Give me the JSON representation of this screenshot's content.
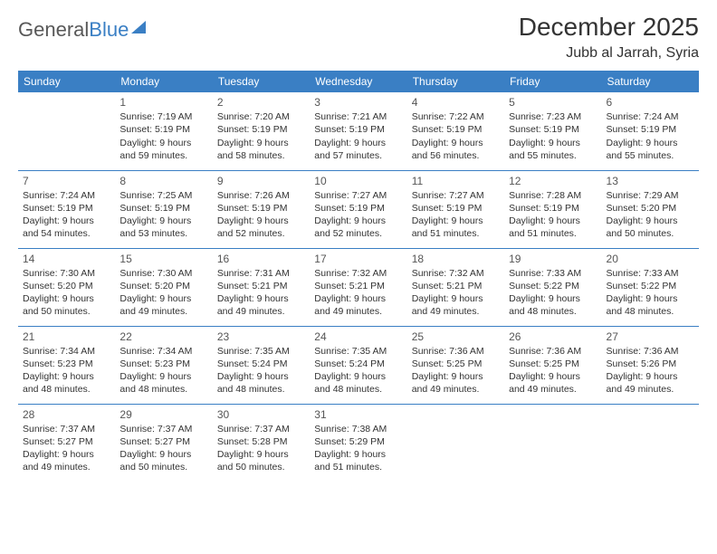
{
  "logo": {
    "text_gray": "General",
    "text_blue": "Blue"
  },
  "title": "December 2025",
  "location": "Jubb al Jarrah, Syria",
  "header_color": "#3a7fc4",
  "border_color": "#3a7fc4",
  "text_color": "#333333",
  "daynum_color": "#555555",
  "background_color": "#ffffff",
  "day_headers": [
    "Sunday",
    "Monday",
    "Tuesday",
    "Wednesday",
    "Thursday",
    "Friday",
    "Saturday"
  ],
  "weeks": [
    [
      null,
      {
        "n": "1",
        "sr": "7:19 AM",
        "ss": "5:19 PM",
        "dl": "9 hours and 59 minutes."
      },
      {
        "n": "2",
        "sr": "7:20 AM",
        "ss": "5:19 PM",
        "dl": "9 hours and 58 minutes."
      },
      {
        "n": "3",
        "sr": "7:21 AM",
        "ss": "5:19 PM",
        "dl": "9 hours and 57 minutes."
      },
      {
        "n": "4",
        "sr": "7:22 AM",
        "ss": "5:19 PM",
        "dl": "9 hours and 56 minutes."
      },
      {
        "n": "5",
        "sr": "7:23 AM",
        "ss": "5:19 PM",
        "dl": "9 hours and 55 minutes."
      },
      {
        "n": "6",
        "sr": "7:24 AM",
        "ss": "5:19 PM",
        "dl": "9 hours and 55 minutes."
      }
    ],
    [
      {
        "n": "7",
        "sr": "7:24 AM",
        "ss": "5:19 PM",
        "dl": "9 hours and 54 minutes."
      },
      {
        "n": "8",
        "sr": "7:25 AM",
        "ss": "5:19 PM",
        "dl": "9 hours and 53 minutes."
      },
      {
        "n": "9",
        "sr": "7:26 AM",
        "ss": "5:19 PM",
        "dl": "9 hours and 52 minutes."
      },
      {
        "n": "10",
        "sr": "7:27 AM",
        "ss": "5:19 PM",
        "dl": "9 hours and 52 minutes."
      },
      {
        "n": "11",
        "sr": "7:27 AM",
        "ss": "5:19 PM",
        "dl": "9 hours and 51 minutes."
      },
      {
        "n": "12",
        "sr": "7:28 AM",
        "ss": "5:19 PM",
        "dl": "9 hours and 51 minutes."
      },
      {
        "n": "13",
        "sr": "7:29 AM",
        "ss": "5:20 PM",
        "dl": "9 hours and 50 minutes."
      }
    ],
    [
      {
        "n": "14",
        "sr": "7:30 AM",
        "ss": "5:20 PM",
        "dl": "9 hours and 50 minutes."
      },
      {
        "n": "15",
        "sr": "7:30 AM",
        "ss": "5:20 PM",
        "dl": "9 hours and 49 minutes."
      },
      {
        "n": "16",
        "sr": "7:31 AM",
        "ss": "5:21 PM",
        "dl": "9 hours and 49 minutes."
      },
      {
        "n": "17",
        "sr": "7:32 AM",
        "ss": "5:21 PM",
        "dl": "9 hours and 49 minutes."
      },
      {
        "n": "18",
        "sr": "7:32 AM",
        "ss": "5:21 PM",
        "dl": "9 hours and 49 minutes."
      },
      {
        "n": "19",
        "sr": "7:33 AM",
        "ss": "5:22 PM",
        "dl": "9 hours and 48 minutes."
      },
      {
        "n": "20",
        "sr": "7:33 AM",
        "ss": "5:22 PM",
        "dl": "9 hours and 48 minutes."
      }
    ],
    [
      {
        "n": "21",
        "sr": "7:34 AM",
        "ss": "5:23 PM",
        "dl": "9 hours and 48 minutes."
      },
      {
        "n": "22",
        "sr": "7:34 AM",
        "ss": "5:23 PM",
        "dl": "9 hours and 48 minutes."
      },
      {
        "n": "23",
        "sr": "7:35 AM",
        "ss": "5:24 PM",
        "dl": "9 hours and 48 minutes."
      },
      {
        "n": "24",
        "sr": "7:35 AM",
        "ss": "5:24 PM",
        "dl": "9 hours and 48 minutes."
      },
      {
        "n": "25",
        "sr": "7:36 AM",
        "ss": "5:25 PM",
        "dl": "9 hours and 49 minutes."
      },
      {
        "n": "26",
        "sr": "7:36 AM",
        "ss": "5:25 PM",
        "dl": "9 hours and 49 minutes."
      },
      {
        "n": "27",
        "sr": "7:36 AM",
        "ss": "5:26 PM",
        "dl": "9 hours and 49 minutes."
      }
    ],
    [
      {
        "n": "28",
        "sr": "7:37 AM",
        "ss": "5:27 PM",
        "dl": "9 hours and 49 minutes."
      },
      {
        "n": "29",
        "sr": "7:37 AM",
        "ss": "5:27 PM",
        "dl": "9 hours and 50 minutes."
      },
      {
        "n": "30",
        "sr": "7:37 AM",
        "ss": "5:28 PM",
        "dl": "9 hours and 50 minutes."
      },
      {
        "n": "31",
        "sr": "7:38 AM",
        "ss": "5:29 PM",
        "dl": "9 hours and 51 minutes."
      },
      null,
      null,
      null
    ]
  ],
  "labels": {
    "sunrise": "Sunrise:",
    "sunset": "Sunset:",
    "daylight": "Daylight:"
  }
}
